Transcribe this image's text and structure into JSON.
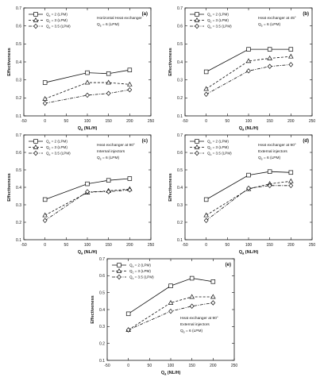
{
  "chart_data": [
    {
      "type": "line",
      "panel_label": "(a)",
      "notes": [
        "Horizontal Heat exchanger",
        "Q_s = 6 (LPM)"
      ],
      "xlabel": "Q_a (NL/H)",
      "ylabel": "Effectiveness",
      "xlim": [
        -50,
        250
      ],
      "ylim": [
        0.1,
        0.7
      ],
      "x_ticks": [
        "-50",
        "0",
        "50",
        "100",
        "150",
        "200",
        "250"
      ],
      "y_ticks": [
        "0.1",
        "0.2",
        "0.3",
        "0.4",
        "0.5",
        "0.6",
        "0.7"
      ],
      "x": [
        0,
        100,
        150,
        200
      ],
      "series": [
        {
          "name": "Q_c = 2 (LPM)",
          "marker": "square",
          "dash": "solid",
          "values": [
            0.285,
            0.34,
            0.335,
            0.355
          ]
        },
        {
          "name": "Q_c = 3 (LPM)",
          "marker": "triangle",
          "dash": "dash",
          "values": [
            0.195,
            0.285,
            0.285,
            0.275
          ]
        },
        {
          "name": "Q_c = 3.5 (LPM)",
          "marker": "diamond",
          "dash": "dashdot",
          "values": [
            0.17,
            0.215,
            0.225,
            0.245
          ]
        }
      ]
    },
    {
      "type": "line",
      "panel_label": "(b)",
      "notes": [
        "Heat exchanger at 45°",
        "Q_s = 6 (LPM)"
      ],
      "xlabel": "Q_a (NL/H)",
      "ylabel": "Effectiveness",
      "xlim": [
        -50,
        250
      ],
      "ylim": [
        0.1,
        0.7
      ],
      "x_ticks": [
        "-50",
        "0",
        "50",
        "100",
        "150",
        "200",
        "250"
      ],
      "y_ticks": [
        "0.1",
        "0.2",
        "0.3",
        "0.4",
        "0.5",
        "0.6",
        "0.7"
      ],
      "x": [
        0,
        100,
        150,
        200
      ],
      "series": [
        {
          "name": "Q_c = 2 (LPM)",
          "marker": "square",
          "dash": "solid",
          "values": [
            0.345,
            0.47,
            0.47,
            0.47
          ]
        },
        {
          "name": "Q_c = 3 (LPM)",
          "marker": "triangle",
          "dash": "dash",
          "values": [
            0.25,
            0.405,
            0.42,
            0.43
          ]
        },
        {
          "name": "Q_c = 3.5 (LPM)",
          "marker": "diamond",
          "dash": "dashdot",
          "values": [
            0.22,
            0.35,
            0.375,
            0.385
          ]
        }
      ]
    },
    {
      "type": "line",
      "panel_label": "(c)",
      "notes": [
        "Heat exchanger at 90°",
        "Internal injectors",
        "Q_s = 6 (LPM)"
      ],
      "xlabel": "Q_a (NL/H)",
      "ylabel": "Effectiveness",
      "xlim": [
        -50,
        250
      ],
      "ylim": [
        0.1,
        0.7
      ],
      "x_ticks": [
        "-50",
        "0",
        "50",
        "100",
        "150",
        "200",
        "250"
      ],
      "y_ticks": [
        "0.1",
        "0.2",
        "0.3",
        "0.4",
        "0.5",
        "0.6",
        "0.7"
      ],
      "x": [
        0,
        100,
        150,
        200
      ],
      "series": [
        {
          "name": "Q_c = 2 (LPM)",
          "marker": "square",
          "dash": "solid",
          "values": [
            0.33,
            0.42,
            0.44,
            0.45
          ]
        },
        {
          "name": "Q_c = 3 (LPM)",
          "marker": "triangle",
          "dash": "dash",
          "values": [
            0.24,
            0.37,
            0.38,
            0.39
          ]
        },
        {
          "name": "Q_c = 3.5 (LPM)",
          "marker": "diamond",
          "dash": "dashdot",
          "values": [
            0.21,
            0.375,
            0.375,
            0.385
          ]
        }
      ]
    },
    {
      "type": "line",
      "panel_label": "(d)",
      "notes": [
        "Heat exchanger at 90°",
        "External injectors",
        "Q_s = 6 (LPM)"
      ],
      "xlabel": "Q_a (NL/H)",
      "ylabel": "Effectiveness",
      "xlim": [
        -50,
        250
      ],
      "ylim": [
        0.1,
        0.7
      ],
      "x_ticks": [
        "-50",
        "0",
        "50",
        "100",
        "150",
        "200",
        "250"
      ],
      "y_ticks": [
        "0.1",
        "0.2",
        "0.3",
        "0.4",
        "0.5",
        "0.6",
        "0.7"
      ],
      "x": [
        0,
        100,
        150,
        200
      ],
      "series": [
        {
          "name": "Q_c = 2 (LPM)",
          "marker": "square",
          "dash": "solid",
          "values": [
            0.33,
            0.47,
            0.49,
            0.485
          ]
        },
        {
          "name": "Q_c = 3 (LPM)",
          "marker": "triangle",
          "dash": "dash",
          "values": [
            0.24,
            0.39,
            0.42,
            0.435
          ]
        },
        {
          "name": "Q_c = 3.5 (LPM)",
          "marker": "diamond",
          "dash": "dashdot",
          "values": [
            0.21,
            0.395,
            0.41,
            0.41
          ]
        }
      ]
    },
    {
      "type": "line",
      "panel_label": "(e)",
      "notes": [
        "Heat exchanger at 90°",
        "External injectors",
        "Q_s = 6 (LPM)"
      ],
      "xlabel": "Q_a (NL/H)",
      "ylabel": "Effectiveness",
      "xlim": [
        -50,
        250
      ],
      "ylim": [
        0.1,
        0.7
      ],
      "x_ticks": [
        "-50",
        "0",
        "50",
        "100",
        "150",
        "200",
        "250"
      ],
      "y_ticks": [
        "0.1",
        "0.2",
        "0.3",
        "0.4",
        "0.5",
        "0.6",
        "0.7"
      ],
      "x": [
        0,
        100,
        150,
        200
      ],
      "series": [
        {
          "name": "Q_c = 2 (LPM)",
          "marker": "square",
          "dash": "solid",
          "values": [
            0.375,
            0.54,
            0.585,
            0.565
          ]
        },
        {
          "name": "Q_c = 3 (LPM)",
          "marker": "triangle",
          "dash": "dash",
          "values": [
            0.28,
            0.44,
            0.475,
            0.475
          ]
        },
        {
          "name": "Q_c = 3.5 (LPM)",
          "marker": "diamond",
          "dash": "dashdot",
          "values": [
            0.28,
            0.39,
            0.42,
            0.44
          ]
        }
      ]
    }
  ]
}
